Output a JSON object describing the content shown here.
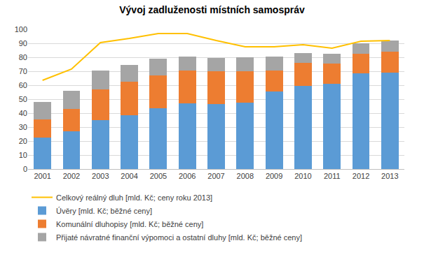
{
  "chart_data": {
    "type": "bar",
    "title": "Vývoj zadluženosti místních samospráv",
    "stacked": true,
    "grid": true,
    "legend": "bottom",
    "categories": [
      "2001",
      "2002",
      "2003",
      "2004",
      "2005",
      "2006",
      "2007",
      "2008",
      "2009",
      "2010",
      "2011",
      "2012",
      "2013"
    ],
    "ylim": [
      0,
      100
    ],
    "yticks": [
      0,
      10,
      20,
      30,
      40,
      50,
      60,
      70,
      80,
      90,
      100
    ],
    "series": [
      {
        "name": "Přijaté návratné finanční výpomoci a ostatní dluhy [mld. Kč; běžné ceny]",
        "type": "bar",
        "color": "#a5a5a5",
        "values": [
          12.5,
          13,
          13.5,
          12,
          12,
          10,
          9.5,
          10,
          10,
          7,
          7,
          7.5,
          8
        ]
      },
      {
        "name": "Komunální dluhopisy [mld. Kč; běžné ceny]",
        "type": "bar",
        "color": "#ed7d31",
        "values": [
          13,
          16,
          22,
          24,
          23.5,
          23.5,
          23.5,
          22.5,
          15,
          16.5,
          14.5,
          14,
          15
        ]
      },
      {
        "name": "Úvěry [mld. Kč; běžné ceny]",
        "type": "bar",
        "color": "#5b9bd5",
        "values": [
          22.5,
          27,
          35,
          38.5,
          43.5,
          47,
          46.5,
          47.5,
          55.5,
          59.5,
          61,
          68.5,
          69
        ]
      },
      {
        "name": "Celkový reálný dluh [mld. Kč; ceny roku 2013]",
        "type": "line",
        "color": "#ffc000",
        "values": [
          63.5,
          71.5,
          90.5,
          93.5,
          97,
          97,
          92,
          87.5,
          87.5,
          89,
          86.5,
          91.5,
          92
        ]
      }
    ]
  }
}
